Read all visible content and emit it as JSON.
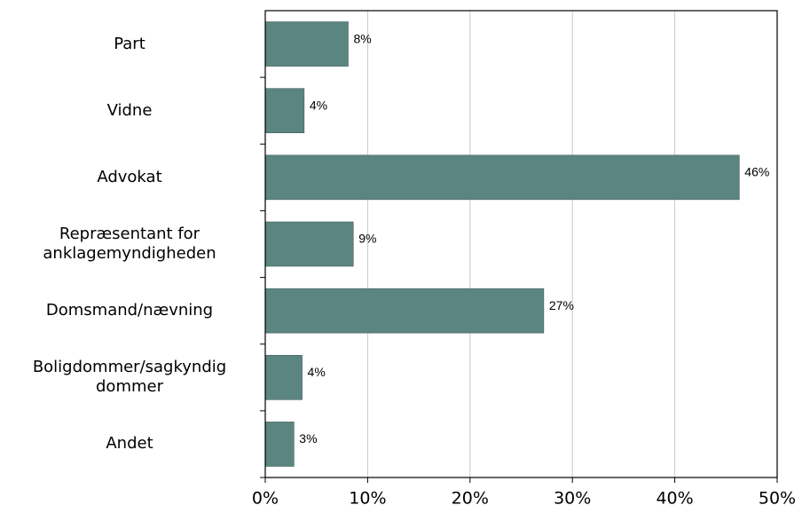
{
  "chart_data": {
    "type": "bar",
    "orientation": "horizontal",
    "categories": [
      "Part",
      "Vidne",
      "Advokat",
      "Repræsentant for\nanklagemyndigheden",
      "Domsmand/nævning",
      "Boligdommer/sagkyndig\ndommer",
      "Andet"
    ],
    "values": [
      8.1,
      3.8,
      46.3,
      8.6,
      27.2,
      3.6,
      2.8
    ],
    "value_labels": [
      "8%",
      "4%",
      "46%",
      "9%",
      "27%",
      "4%",
      "3%"
    ],
    "color": "#5b8580",
    "xlim": [
      0,
      50
    ],
    "xticks": [
      {
        "value": 0,
        "label": "0%"
      },
      {
        "value": 10,
        "label": "10%"
      },
      {
        "value": 20,
        "label": "20%"
      },
      {
        "value": 30,
        "label": "30%"
      },
      {
        "value": 40,
        "label": "40%"
      },
      {
        "value": 50,
        "label": "50%"
      }
    ],
    "grid": true
  }
}
